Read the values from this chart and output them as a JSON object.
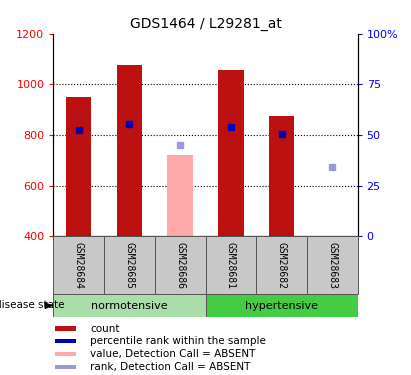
{
  "title": "GDS1464 / L29281_at",
  "samples": [
    "GSM28684",
    "GSM28685",
    "GSM28686",
    "GSM28681",
    "GSM28682",
    "GSM28683"
  ],
  "count_values": [
    950,
    1075,
    null,
    1055,
    875,
    null
  ],
  "count_absent_values": [
    null,
    null,
    720,
    null,
    null,
    null
  ],
  "rank_values": [
    820,
    845,
    null,
    830,
    803,
    null
  ],
  "rank_absent_values": [
    null,
    null,
    760,
    null,
    null,
    675
  ],
  "ylim_left": [
    400,
    1200
  ],
  "ylim_right": [
    0,
    100
  ],
  "yticks_left": [
    400,
    600,
    800,
    1000,
    1200
  ],
  "yticks_right": [
    0,
    25,
    50,
    75,
    100
  ],
  "ytick_labels_right": [
    "0",
    "25",
    "50",
    "75",
    "100%"
  ],
  "bar_color_red": "#BB1111",
  "bar_color_pink": "#FFAAAA",
  "dot_color_blue": "#0000BB",
  "dot_color_lightblue": "#9999DD",
  "sample_label_bg": "#C8C8C8",
  "bar_width": 0.5,
  "norm_color": "#AADDAA",
  "hyper_color": "#44CC44",
  "norm_label": "normotensive",
  "hyper_label": "hypertensive",
  "disease_state_label": "disease state",
  "legend_items": [
    {
      "label": "count",
      "color": "#BB1111",
      "type": "square"
    },
    {
      "label": "percentile rank within the sample",
      "color": "#0000BB",
      "type": "square"
    },
    {
      "label": "value, Detection Call = ABSENT",
      "color": "#FFAAAA",
      "type": "square"
    },
    {
      "label": "rank, Detection Call = ABSENT",
      "color": "#9999DD",
      "type": "square"
    }
  ]
}
